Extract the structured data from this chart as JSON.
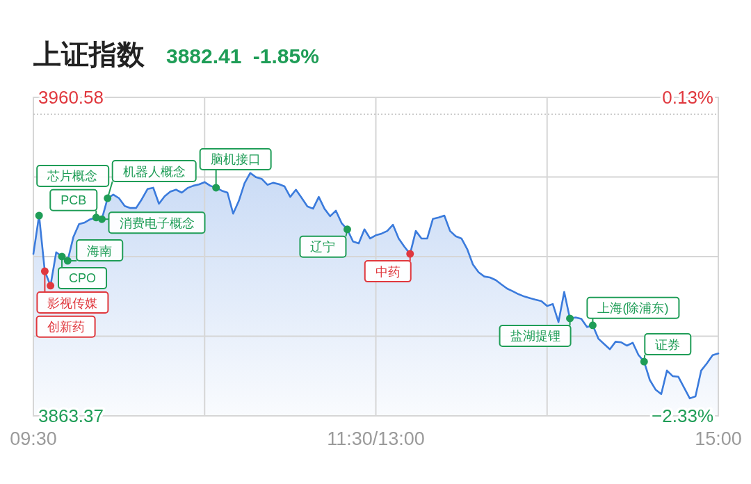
{
  "chart_data": {
    "type": "area",
    "title": "上证指数",
    "subtitle": "3882.41 -1.85%",
    "categories": [
      "09:30",
      null,
      null,
      null,
      null,
      null,
      null,
      null,
      null,
      null,
      null,
      null,
      null,
      null,
      null,
      null,
      null,
      null,
      null,
      null,
      null,
      null,
      null,
      null,
      null,
      null,
      null,
      null,
      null,
      null,
      null,
      null,
      null,
      null,
      null,
      null,
      null,
      null,
      null,
      null,
      null,
      null,
      null,
      null,
      null,
      null,
      null,
      null,
      null,
      null,
      null,
      null,
      null,
      null,
      null,
      null,
      null,
      null,
      null,
      null,
      "11:30/13:00",
      null,
      null,
      null,
      null,
      null,
      null,
      null,
      null,
      null,
      null,
      null,
      null,
      null,
      null,
      null,
      null,
      null,
      null,
      null,
      null,
      null,
      null,
      null,
      null,
      null,
      null,
      null,
      null,
      null,
      null,
      null,
      null,
      null,
      null,
      null,
      null,
      null,
      null,
      null,
      null,
      null,
      null,
      null,
      null,
      null,
      null,
      null,
      null,
      null,
      null,
      null,
      null,
      null,
      null,
      null,
      null,
      null,
      null,
      null,
      "15:00"
    ],
    "series": [
      {
        "color": "#3b7bdc",
        "values": [
          3912.8,
          3924.5,
          3907.5,
          3903.1,
          3913.3,
          3912.0,
          3910.7,
          3917.9,
          3921.9,
          3922.4,
          3923.4,
          3923.9,
          3923.4,
          3929.8,
          3930.9,
          3929.8,
          3927.4,
          3926.8,
          3926.8,
          3929.5,
          3932.6,
          3933.0,
          3928.1,
          3930.4,
          3931.8,
          3932.4,
          3931.5,
          3932.9,
          3933.6,
          3934.0,
          3934.7,
          3933.6,
          3933.0,
          3932.1,
          3931.5,
          3925.1,
          3929.0,
          3934.4,
          3937.5,
          3936.2,
          3935.7,
          3933.9,
          3934.5,
          3934.1,
          3933.4,
          3930.2,
          3932.4,
          3929.9,
          3927.3,
          3926.6,
          3930.2,
          3926.6,
          3924.3,
          3926.0,
          3922.2,
          3920.3,
          3916.6,
          3916.0,
          3920.3,
          3917.5,
          3918.5,
          3919.0,
          3919.8,
          3921.7,
          3917.5,
          3915.0,
          3912.8,
          3919.8,
          3917.5,
          3917.5,
          3923.5,
          3923.9,
          3924.5,
          3919.8,
          3918.2,
          3917.5,
          3914.3,
          3909.6,
          3907.2,
          3905.9,
          3905.6,
          3904.8,
          3903.5,
          3902.2,
          3901.4,
          3900.5,
          3899.8,
          3899.3,
          3898.8,
          3898.4,
          3896.9,
          3897.5,
          3892.0,
          3901.2,
          3893.1,
          3893.4,
          3893.0,
          3890.5,
          3891.0,
          3886.9,
          3885.3,
          3883.7,
          3886.0,
          3885.8,
          3884.8,
          3885.7,
          3882.0,
          3879.9,
          3874.3,
          3871.4,
          3870.0,
          3877.2,
          3875.5,
          3875.3,
          3872.0,
          3868.7,
          3869.3,
          3877.2,
          3879.4,
          3881.9,
          3882.4
        ]
      },
      {
        "type": "scatter",
        "marker": "circle",
        "values": [
          null,
          3924.5,
          3907.5,
          3903.1,
          null,
          3912.0,
          3910.7,
          null,
          null,
          null,
          null,
          3923.9,
          3923.4,
          3929.8,
          null,
          null,
          null,
          null,
          null,
          null,
          null,
          null,
          null,
          null,
          null,
          null,
          null,
          null,
          null,
          null,
          null,
          null,
          3933.0,
          null,
          null,
          null,
          null,
          null,
          null,
          null,
          null,
          null,
          null,
          null,
          null,
          null,
          null,
          null,
          null,
          null,
          null,
          null,
          null,
          null,
          null,
          3920.3,
          null,
          null,
          null,
          null,
          null,
          null,
          null,
          null,
          null,
          null,
          3912.8,
          null,
          null,
          null,
          null,
          null,
          null,
          null,
          null,
          null,
          null,
          null,
          null,
          null,
          null,
          null,
          null,
          null,
          null,
          null,
          null,
          null,
          null,
          null,
          null,
          null,
          null,
          null,
          3893.1,
          null,
          null,
          null,
          3891.0,
          null,
          null,
          null,
          null,
          null,
          null,
          null,
          null,
          3879.9,
          null,
          null,
          null,
          null,
          null,
          null,
          null,
          null,
          null,
          null,
          null,
          null,
          null
        ],
        "colors": [
          null,
          "#1f9d57",
          "#e0383e",
          "#e0383e",
          null,
          "#1f9d57",
          "#1f9d57",
          null,
          null,
          null,
          null,
          "#1f9d57",
          "#1f9d57",
          "#1f9d57",
          null,
          null,
          null,
          null,
          null,
          null,
          null,
          null,
          null,
          null,
          null,
          null,
          null,
          null,
          null,
          null,
          null,
          null,
          "#1f9d57",
          null,
          null,
          null,
          null,
          null,
          null,
          null,
          null,
          null,
          null,
          null,
          null,
          null,
          null,
          null,
          null,
          null,
          null,
          null,
          null,
          null,
          null,
          "#1f9d57",
          null,
          null,
          null,
          null,
          null,
          null,
          null,
          null,
          null,
          null,
          "#e0383e",
          null,
          null,
          null,
          null,
          null,
          null,
          null,
          null,
          null,
          null,
          null,
          null,
          null,
          null,
          null,
          null,
          null,
          null,
          null,
          null,
          null,
          null,
          null,
          null,
          null,
          null,
          null,
          "#1f9d57",
          null,
          null,
          null,
          "#1f9d57",
          null,
          null,
          null,
          null,
          null,
          null,
          null,
          null,
          "#1f9d57",
          null,
          null,
          null,
          null,
          null,
          null,
          null,
          null,
          null,
          null,
          null,
          null,
          null
        ]
      }
    ],
    "annotations": [
      "芯片概念",
      "影视传媒",
      "创新药",
      "CPO",
      "海南",
      "PCB",
      "消费电子概念",
      "机器人概念",
      "脑机接口",
      "辽宁",
      "中药",
      "盐湖提锂",
      "上海(除浦东)",
      "证券"
    ],
    "ylim": [
      3863.37,
      3960.58
    ],
    "yticks": [
      3863.37,
      {
        "value": 3887.67,
        "label": null
      },
      {
        "value": 3911.98,
        "label": null
      },
      {
        "value": 3936.28,
        "label": null
      },
      3960.58
    ],
    "y2lim": [
      -2.33,
      0.13
    ],
    "y2ticks": [
      {
        "value": -2.33,
        "label": "−2.33%"
      },
      {
        "value": 0.13,
        "label": "0.13%"
      }
    ],
    "ref_lines": [
      {
        "axis": "y2",
        "value": 0,
        "line_style": "dotted",
        "color": "#c4c4c4"
      }
    ],
    "grid": true
  }
}
